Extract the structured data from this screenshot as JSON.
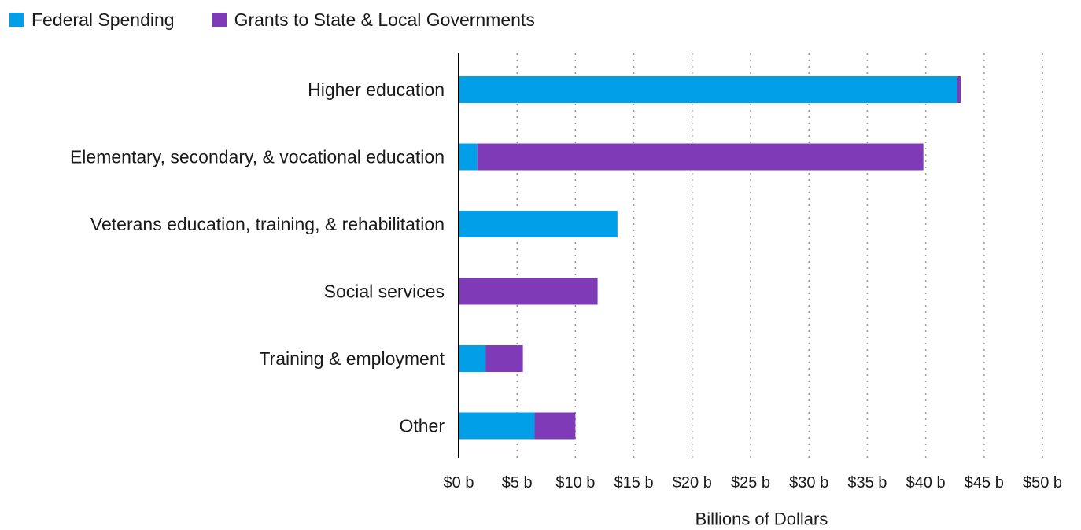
{
  "chart_data": {
    "type": "bar",
    "orientation": "horizontal",
    "stacked": true,
    "title": "",
    "xlabel": "Billions of Dollars",
    "ylabel": "",
    "xlim": [
      0,
      50
    ],
    "x_ticks": [
      0,
      5,
      10,
      15,
      20,
      25,
      30,
      35,
      40,
      45,
      50
    ],
    "x_tick_labels": [
      "$0 b",
      "$5 b",
      "$10 b",
      "$15 b",
      "$20 b",
      "$25 b",
      "$30 b",
      "$35 b",
      "$40 b",
      "$45 b",
      "$50 b"
    ],
    "grid": "vertical dotted",
    "legend_position": "top-left",
    "categories": [
      "Higher education",
      "Elementary, secondary, & vocational education",
      "Veterans education, training, & rehabilitation",
      "Social services",
      "Training & employment",
      "Other"
    ],
    "series": [
      {
        "name": "Federal Spending",
        "color": "#009fe8",
        "values": [
          42.7,
          1.6,
          13.6,
          0,
          2.3,
          6.5
        ]
      },
      {
        "name": "Grants to State & Local Governments",
        "color": "#7f3ab7",
        "values": [
          0.3,
          38.2,
          0,
          11.9,
          3.2,
          3.5
        ]
      }
    ]
  }
}
